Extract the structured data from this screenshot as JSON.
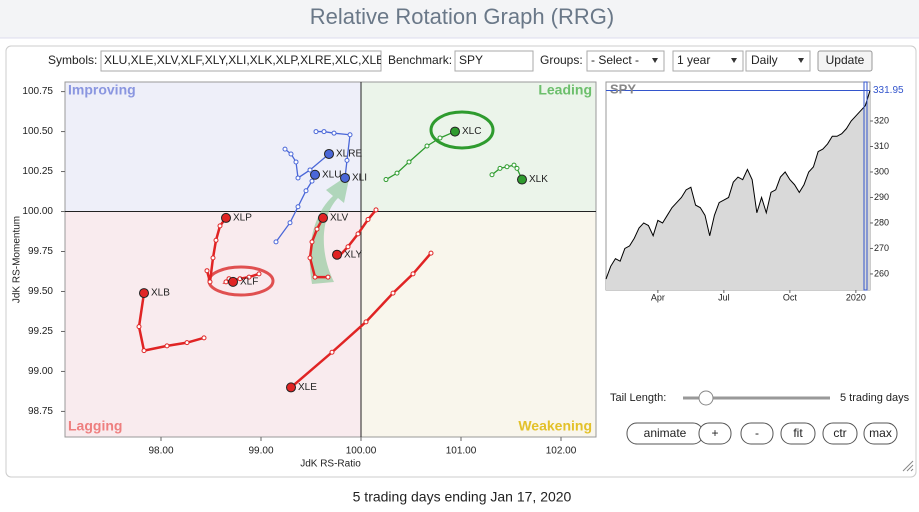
{
  "header": {
    "title": "Relative Rotation Graph (RRG)"
  },
  "controls": {
    "symbols_label": "Symbols:",
    "symbols": "XLU,XLE,XLV,XLF,XLY,XLI,XLK,XLP,XLRE,XLC,XLB",
    "benchmark_label": "Benchmark:",
    "benchmark": "SPY",
    "groups_label": "Groups:",
    "groups": "- Select -",
    "period": "1 year",
    "interval": "Daily",
    "update": "Update"
  },
  "chart_data": [
    {
      "type": "rrg",
      "xlabel": "JdK RS-Ratio",
      "ylabel": "JdK RS-Momentum",
      "xlim": [
        97.04,
        102.35
      ],
      "ylim": [
        98.59,
        100.81
      ],
      "quadrant_center": [
        100,
        100
      ],
      "xticks": [
        {
          "value": 98,
          "label": "98.00"
        },
        {
          "value": 99,
          "label": "99.00"
        },
        {
          "value": 100,
          "label": "100.00"
        },
        {
          "value": 101,
          "label": "101.00"
        },
        {
          "value": 102,
          "label": "102.00"
        }
      ],
      "yticks": [
        {
          "value": 98.75,
          "label": "98.75"
        },
        {
          "value": 99,
          "label": "99.00"
        },
        {
          "value": 99.25,
          "label": "99.25"
        },
        {
          "value": 99.5,
          "label": "99.50"
        },
        {
          "value": 99.75,
          "label": "99.75"
        },
        {
          "value": 100,
          "label": "100.00"
        },
        {
          "value": 100.25,
          "label": "100.25"
        },
        {
          "value": 100.5,
          "label": "100.50"
        },
        {
          "value": 100.75,
          "label": "100.75"
        }
      ],
      "quadrants": [
        {
          "name": "Improving",
          "corner": "top-left",
          "color": "#8a96e0",
          "fill": "#eeeff9"
        },
        {
          "name": "Leading",
          "corner": "top-right",
          "color": "#6cbf6c",
          "fill": "#ebf4ea"
        },
        {
          "name": "Lagging",
          "corner": "bottom-left",
          "color": "#ee7f7f",
          "fill": "#f9ebee"
        },
        {
          "name": "Weakening",
          "corner": "bottom-right",
          "color": "#e3c12a",
          "fill": "#f9f6ec"
        }
      ],
      "series": [
        {
          "name": "XLC",
          "color": "#2e9b2e",
          "x": [
            100.25,
            100.36,
            100.48,
            100.66,
            100.79,
            100.94
          ],
          "values": [
            100.2,
            100.24,
            100.31,
            100.41,
            100.46,
            100.5
          ]
        },
        {
          "name": "XLK",
          "color": "#2e9b2e",
          "x": [
            101.31,
            101.39,
            101.46,
            101.53,
            101.56,
            101.61
          ],
          "values": [
            100.23,
            100.27,
            100.28,
            100.29,
            100.27,
            100.2
          ]
        },
        {
          "name": "XLU",
          "color": "#4a67d8",
          "x": [
            99.15,
            99.29,
            99.37,
            99.45,
            99.51,
            99.54
          ],
          "values": [
            99.81,
            99.93,
            100.03,
            100.13,
            100.19,
            100.23
          ]
        },
        {
          "name": "XLRE",
          "color": "#4a67d8",
          "x": [
            99.24,
            99.3,
            99.35,
            99.37,
            99.49,
            99.68
          ],
          "values": [
            100.39,
            100.36,
            100.31,
            100.21,
            100.26,
            100.36
          ]
        },
        {
          "name": "XLI",
          "color": "#4a67d8",
          "x": [
            99.55,
            99.63,
            99.73,
            99.89,
            99.86,
            99.84
          ],
          "values": [
            100.5,
            100.5,
            100.49,
            100.48,
            100.32,
            100.21
          ]
        },
        {
          "name": "XLP",
          "color": "#e02424",
          "x": [
            98.46,
            98.49,
            98.52,
            98.55,
            98.59,
            98.65
          ],
          "values": [
            99.63,
            99.56,
            99.71,
            99.82,
            99.91,
            99.96
          ]
        },
        {
          "name": "XLF",
          "color": "#e02424",
          "x": [
            98.98,
            98.88,
            98.79,
            98.65,
            98.68,
            98.72
          ],
          "values": [
            99.61,
            99.59,
            99.58,
            99.56,
            99.58,
            99.56
          ]
        },
        {
          "name": "XLB",
          "color": "#e02424",
          "x": [
            98.43,
            98.26,
            98.06,
            97.83,
            97.78,
            97.83
          ],
          "values": [
            99.21,
            99.18,
            99.16,
            99.13,
            99.28,
            99.49
          ]
        },
        {
          "name": "XLE",
          "color": "#e02424",
          "x": [
            100.7,
            100.52,
            100.32,
            100.05,
            99.71,
            99.3
          ],
          "values": [
            99.74,
            99.61,
            99.49,
            99.31,
            99.12,
            98.9
          ]
        },
        {
          "name": "XLV",
          "color": "#e02424",
          "x": [
            99.67,
            99.54,
            99.49,
            99.51,
            99.56,
            99.62
          ],
          "values": [
            99.59,
            99.59,
            99.71,
            99.81,
            99.89,
            99.96
          ]
        },
        {
          "name": "XLY",
          "color": "#e02424",
          "x": [
            100.15,
            100.07,
            99.97,
            99.87,
            99.78,
            99.76
          ],
          "values": [
            100.01,
            99.95,
            99.86,
            99.78,
            99.72,
            99.73
          ]
        }
      ]
    },
    {
      "type": "line",
      "title": "SPY",
      "color": "#000000",
      "fill": "#d9d9d9",
      "values": [
        258,
        263,
        266,
        265,
        270,
        271,
        274,
        278,
        280,
        279,
        275,
        281,
        280,
        283,
        286,
        288,
        290,
        293,
        294,
        287,
        286,
        283,
        275,
        283,
        288,
        289,
        290,
        296,
        298,
        297,
        301,
        297,
        284,
        290,
        284,
        292,
        293,
        298,
        300,
        297,
        295,
        292,
        295,
        300,
        302,
        308,
        309,
        311,
        314,
        314,
        315,
        317,
        320,
        322,
        324,
        326,
        331.95
      ],
      "xlim": [
        0,
        56
      ],
      "ylim": [
        253.7,
        335.3
      ],
      "xticks": [
        {
          "value": 11,
          "label": "Apr"
        },
        {
          "value": 25,
          "label": "Jul"
        },
        {
          "value": 39,
          "label": "Oct"
        },
        {
          "value": 53,
          "label": "2020"
        }
      ],
      "yticks": [
        260,
        270,
        280,
        290,
        300,
        310,
        320
      ]
    }
  ],
  "tail": {
    "label": "Tail Length:",
    "value_label": "5 trading days"
  },
  "buttons": [
    "animate",
    "+",
    "-",
    "fit",
    "ctr",
    "max"
  ],
  "footer": "5 trading days ending Jan 17, 2020"
}
